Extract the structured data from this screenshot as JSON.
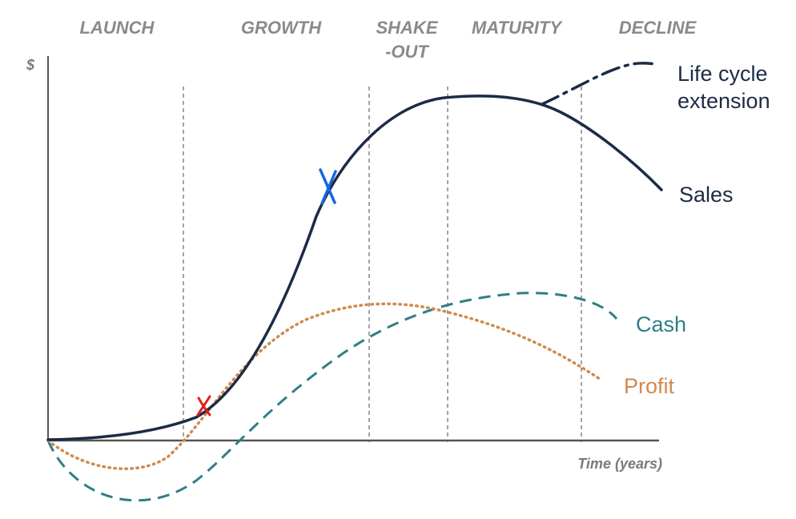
{
  "stages": {
    "launch": "LAUNCH",
    "growth": "GROWTH",
    "shakeout_line1": "SHAKE",
    "shakeout_line2": "-OUT",
    "maturity": "MATURITY",
    "decline": "DECLINE"
  },
  "axes": {
    "y_label": "$",
    "x_label": "Time (years)"
  },
  "curves": {
    "sales": {
      "label": "Sales",
      "color": "#1c2b45"
    },
    "extension": {
      "label_line1": "Life cycle",
      "label_line2": "extension",
      "color": "#1c2b45"
    },
    "cash": {
      "label": "Cash",
      "color": "#2f7f86"
    },
    "profit": {
      "label": "Profit",
      "color": "#d08a4e"
    }
  },
  "annotations": {
    "red_mark_color": "#e0201c",
    "blue_mark_color": "#1565e0"
  }
}
